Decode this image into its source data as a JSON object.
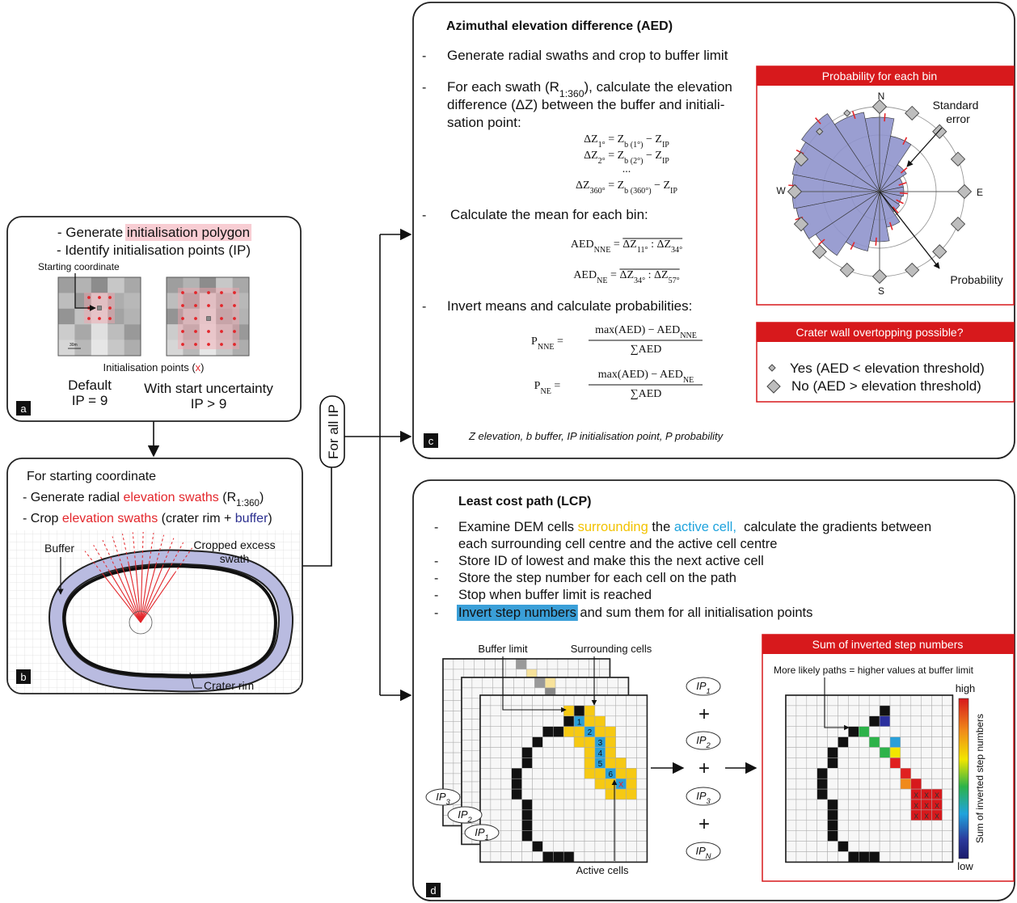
{
  "panel_a": {
    "lines": [
      [
        "- Generate ",
        {
          "text": "initialisation polygon",
          "highlight": "#f8cdd3"
        }
      ],
      "- Identify initialisation points (IP)"
    ],
    "starting_coordinate": "Starting coordinate",
    "scale_bar": "30m",
    "caption": [
      "Initialisation points (",
      {
        "text": "x",
        "color": "#e3262b"
      },
      ")"
    ],
    "default": {
      "title": "Default",
      "count": "IP = 9"
    },
    "uncertainty": {
      "title": "With start uncertainty",
      "count": "IP > 9"
    },
    "label": "a"
  },
  "panel_b": {
    "heading": "For starting coordinate",
    "lines": [
      [
        "- Generate radial ",
        {
          "text": "elevation swaths",
          "color": "#e3262b"
        },
        " (R",
        {
          "sub": "1:360"
        },
        ")"
      ],
      [
        "- Crop ",
        {
          "text": "elevation swaths",
          "color": "#e3262b"
        },
        " (crater rim + ",
        {
          "text": "buffer",
          "color": "#2b2f8f"
        },
        ")"
      ]
    ],
    "buffer": "Buffer",
    "cropped": [
      "Cropped excess",
      "swath"
    ],
    "crater_rim": "Crater rim",
    "label": "b"
  },
  "connector": "For all IP",
  "panel_c": {
    "title": "Azimuthal elevation difference (AED)",
    "bullet": "-",
    "lines": [
      "Generate radial swaths and crop to buffer limit",
      [
        "For each swath (R",
        {
          "sub": "1:360"
        },
        "), calculate the elevation"
      ],
      "difference (ΔZ) between the buffer and initiali-",
      "sation point:",
      "Calculate the mean for each bin:",
      "Invert means and calculate probabilities:"
    ],
    "delta_equations": [
      [
        "ΔZ",
        {
          "sub": "1°"
        },
        " = Z",
        {
          "sub": "b (1°)"
        },
        " − Z",
        {
          "sub": "IP"
        }
      ],
      [
        "ΔZ",
        {
          "sub": "2°"
        },
        " = Z",
        {
          "sub": "b (2°)"
        },
        " − Z",
        {
          "sub": "IP"
        }
      ],
      "...",
      [
        "ΔZ",
        {
          "sub": "360°"
        },
        " = Z",
        {
          "sub": "b (360°)"
        },
        " − Z",
        {
          "sub": "IP"
        }
      ]
    ],
    "mean_equations": [
      [
        "AED",
        {
          "sub": "NNE"
        },
        " = ",
        "ΔZ",
        {
          "sub": "11°"
        },
        " : ΔZ",
        {
          "sub": "34°"
        }
      ],
      [
        "AED",
        {
          "sub": "NE"
        },
        " = ",
        "ΔZ",
        {
          "sub": "34°"
        },
        " : ΔZ",
        {
          "sub": "57°"
        }
      ]
    ],
    "probability_equations": [
      {
        "lhs": [
          "P",
          {
            "sub": "NNE"
          },
          " ="
        ],
        "numerator": [
          "max(AED) − AED",
          {
            "sub": "NNE"
          }
        ],
        "denominator": "∑AED"
      },
      {
        "lhs": [
          "P",
          {
            "sub": "NE"
          },
          " ="
        ],
        "numerator": [
          "max(AED) − AED",
          {
            "sub": "NE"
          }
        ],
        "denominator": "∑AED"
      }
    ],
    "footnote": "Z elevation, b buffer, IP initialisation point, P probability",
    "rose": {
      "title": "Probability for each bin",
      "north": "N",
      "east": "E",
      "south": "S",
      "west": "W",
      "standard_error": [
        "Standard",
        "error"
      ],
      "probability": "Probability"
    },
    "legend": {
      "title": "Crater wall overtopping possible?",
      "yes": "Yes (AED < elevation threshold)",
      "no": "No (AED > elevation threshold)"
    },
    "label": "c"
  },
  "panel_d": {
    "title": "Least cost path (LCP)",
    "bullet": "-",
    "lines": [
      [
        "Examine DEM cells ",
        {
          "text": "surrounding",
          "color": "#f2c200"
        },
        " the ",
        {
          "text": "active cell,",
          "color": "#1fa3dd"
        },
        "  calculate the gradients between"
      ],
      "each surrounding cell centre and the active cell centre",
      "Store ID of lowest and make this the next active cell",
      "Store the step number for each cell on the path",
      "Stop when buffer limit is reached",
      [
        {
          "text": "Invert step numbers",
          "highlight": "#3a9fd8"
        },
        " and sum them for all initialisation points"
      ]
    ],
    "buffer_limit": "Buffer limit",
    "surrounding_cells": "Surrounding cells",
    "active_cells": "Active cells",
    "steps": [
      "1",
      "2",
      "3",
      "4",
      "5",
      "6"
    ],
    "end_marker": "x",
    "layers": [
      [
        "IP",
        {
          "sub": "3"
        }
      ],
      [
        "IP",
        {
          "sub": "2"
        }
      ],
      [
        "IP",
        {
          "sub": "1"
        }
      ]
    ],
    "sum_terms": [
      [
        "IP",
        {
          "sub": "1"
        }
      ],
      [
        "IP",
        {
          "sub": "2"
        }
      ],
      [
        "IP",
        {
          "sub": "3"
        }
      ],
      [
        "IP",
        {
          "sub": "N"
        }
      ]
    ],
    "plus": "+",
    "result": {
      "title": "Sum of inverted step numbers",
      "note": "More likely paths = higher values at buffer limit",
      "high": "high",
      "low": "low",
      "colorbar_label": "Sum of inverted step numbers",
      "marker": "x"
    },
    "label": "d"
  }
}
